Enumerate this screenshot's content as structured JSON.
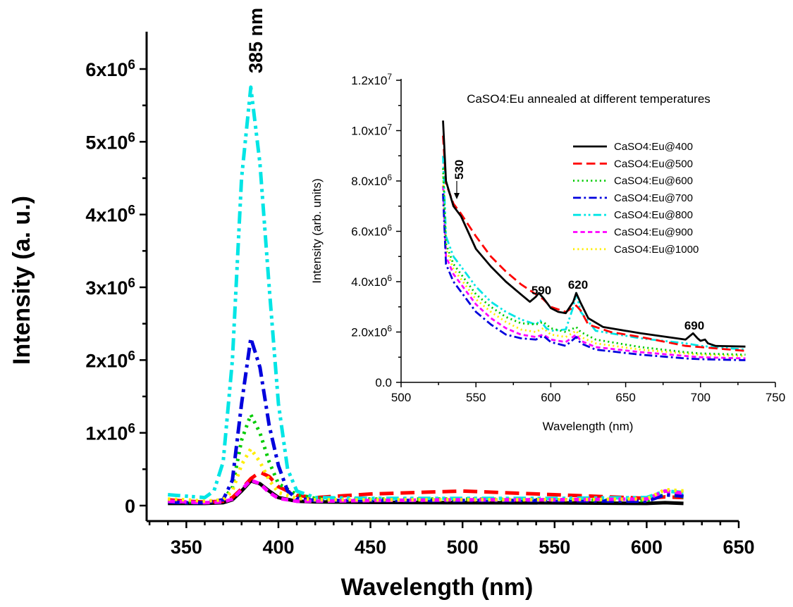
{
  "chart_data": [
    {
      "type": "line",
      "title": "",
      "xlabel": "Wavelength (nm)",
      "ylabel": "Intensity (a. u.)",
      "xlim": [
        320,
        650
      ],
      "ylim": [
        -200000,
        6500000
      ],
      "x_ticks": [
        "350",
        "400",
        "450",
        "500",
        "550",
        "600",
        "650"
      ],
      "y_ticks": [
        {
          "value": 0,
          "mantissa": "0",
          "exp": ""
        },
        {
          "value": 1000000,
          "mantissa": "1x10",
          "exp": "6"
        },
        {
          "value": 2000000,
          "mantissa": "2x10",
          "exp": "6"
        },
        {
          "value": 3000000,
          "mantissa": "3x10",
          "exp": "6"
        },
        {
          "value": 4000000,
          "mantissa": "4x10",
          "exp": "6"
        },
        {
          "value": 5000000,
          "mantissa": "5x10",
          "exp": "6"
        },
        {
          "value": 6000000,
          "mantissa": "6x10",
          "exp": "6"
        }
      ],
      "annotation": "385 nm",
      "grid": false,
      "series": [
        {
          "color": "#000000",
          "dash": "solid",
          "x": [
            340,
            350,
            360,
            370,
            375,
            380,
            385,
            390,
            395,
            400,
            410,
            420,
            450,
            500,
            550,
            600,
            610,
            620
          ],
          "y": [
            30000,
            30000,
            30000,
            40000,
            80000,
            200000,
            340000,
            300000,
            200000,
            110000,
            60000,
            50000,
            45000,
            40000,
            38000,
            30000,
            40000,
            30000
          ]
        },
        {
          "color": "#ff0000",
          "dash": "dash",
          "x": [
            340,
            350,
            360,
            370,
            375,
            380,
            385,
            390,
            395,
            400,
            410,
            420,
            450,
            500,
            550,
            600,
            610,
            620
          ],
          "y": [
            80000,
            60000,
            50000,
            60000,
            110000,
            230000,
            370000,
            460000,
            400000,
            260000,
            140000,
            110000,
            160000,
            200000,
            150000,
            100000,
            120000,
            110000
          ]
        },
        {
          "color": "#00cc00",
          "dash": "dot",
          "x": [
            340,
            350,
            360,
            370,
            375,
            380,
            385,
            390,
            395,
            400,
            410,
            420,
            450,
            500,
            550,
            600,
            610,
            620
          ],
          "y": [
            60000,
            50000,
            50000,
            80000,
            250000,
            900000,
            1250000,
            1000000,
            600000,
            300000,
            150000,
            100000,
            90000,
            90000,
            80000,
            70000,
            150000,
            120000
          ]
        },
        {
          "color": "#0000dd",
          "dash": "dashdot",
          "x": [
            340,
            350,
            360,
            370,
            375,
            380,
            385,
            390,
            395,
            400,
            405,
            410,
            420,
            450,
            500,
            550,
            600,
            610,
            620
          ],
          "y": [
            50000,
            40000,
            40000,
            80000,
            350000,
            1400000,
            2300000,
            1900000,
            1100000,
            550000,
            200000,
            100000,
            70000,
            70000,
            70000,
            70000,
            60000,
            150000,
            130000
          ]
        },
        {
          "color": "#00e5e5",
          "dash": "dashdotdot",
          "x": [
            340,
            350,
            360,
            365,
            370,
            375,
            380,
            385,
            390,
            395,
            400,
            405,
            410,
            420,
            450,
            500,
            550,
            600,
            610,
            620
          ],
          "y": [
            150000,
            130000,
            110000,
            200000,
            600000,
            2000000,
            4500000,
            5750000,
            4700000,
            3000000,
            1400000,
            500000,
            200000,
            110000,
            100000,
            100000,
            100000,
            110000,
            200000,
            180000
          ]
        },
        {
          "color": "#ff00ff",
          "dash": "shortdash",
          "x": [
            340,
            350,
            360,
            370,
            375,
            380,
            385,
            390,
            395,
            400,
            410,
            420,
            450,
            500,
            550,
            600,
            610,
            620
          ],
          "y": [
            60000,
            50000,
            40000,
            50000,
            90000,
            220000,
            350000,
            300000,
            180000,
            100000,
            60000,
            60000,
            70000,
            80000,
            80000,
            90000,
            200000,
            170000
          ]
        },
        {
          "color": "#ffee00",
          "dash": "dot",
          "x": [
            340,
            350,
            360,
            370,
            375,
            380,
            385,
            390,
            395,
            400,
            410,
            420,
            450,
            500,
            550,
            600,
            610,
            620
          ],
          "y": [
            90000,
            80000,
            60000,
            80000,
            200000,
            560000,
            780000,
            600000,
            350000,
            180000,
            100000,
            80000,
            80000,
            80000,
            80000,
            90000,
            220000,
            200000
          ]
        }
      ]
    },
    {
      "type": "line",
      "title": "CaSO4:Eu annealed at different temperatures",
      "xlabel": "Wavelength (nm)",
      "ylabel": "Intensity (arb. units)",
      "xlim": [
        500,
        750
      ],
      "ylim": [
        0,
        12000000
      ],
      "x_ticks": [
        "500",
        "550",
        "600",
        "650",
        "700",
        "750"
      ],
      "y_ticks": [
        {
          "value": 0,
          "mantissa": "0.0",
          "exp": ""
        },
        {
          "value": 2000000,
          "mantissa": "2.0x10",
          "exp": "6"
        },
        {
          "value": 4000000,
          "mantissa": "4.0x10",
          "exp": "6"
        },
        {
          "value": 6000000,
          "mantissa": "6.0x10",
          "exp": "6"
        },
        {
          "value": 8000000,
          "mantissa": "8.0x10",
          "exp": "6"
        },
        {
          "value": 10000000,
          "mantissa": "1.0x10",
          "exp": "7"
        },
        {
          "value": 12000000,
          "mantissa": "1.2x10",
          "exp": "7"
        }
      ],
      "annotations": [
        "530",
        "590",
        "620",
        "690"
      ],
      "legend_position": "top-right",
      "grid": false,
      "series": [
        {
          "name": "CaSO4:Eu@400",
          "color": "#000000",
          "dash": "solid",
          "x": [
            528,
            530,
            535,
            540,
            550,
            560,
            570,
            580,
            586,
            590,
            592,
            595,
            600,
            605,
            610,
            615,
            617,
            620,
            625,
            635,
            660,
            690,
            693,
            695,
            698,
            700,
            703,
            705,
            710,
            730
          ],
          "y": [
            10400000,
            8000000,
            7000000,
            6600000,
            5300000,
            4600000,
            4000000,
            3500000,
            3200000,
            3400000,
            3550000,
            3350000,
            2950000,
            2800000,
            2750000,
            3200000,
            3550000,
            3150000,
            2550000,
            2200000,
            1950000,
            1700000,
            1850000,
            1950000,
            1750000,
            1650000,
            1700000,
            1550000,
            1450000,
            1420000
          ]
        },
        {
          "name": "CaSO4:Eu@500",
          "color": "#ff0000",
          "dash": "dash",
          "x": [
            528,
            530,
            535,
            540,
            550,
            560,
            570,
            580,
            590,
            595,
            600,
            610,
            617,
            620,
            625,
            640,
            660,
            690,
            700,
            730
          ],
          "y": [
            9800000,
            7900000,
            7100000,
            6700000,
            5800000,
            5000000,
            4400000,
            3900000,
            3500000,
            3300000,
            3000000,
            2800000,
            3050000,
            2850000,
            2300000,
            2000000,
            1800000,
            1450000,
            1400000,
            1250000
          ]
        },
        {
          "name": "CaSO4:Eu@600",
          "color": "#00cc00",
          "dash": "dot",
          "x": [
            528,
            530,
            535,
            540,
            550,
            560,
            570,
            580,
            590,
            595,
            600,
            610,
            617,
            620,
            630,
            660,
            690,
            700,
            730
          ],
          "y": [
            8500000,
            5500000,
            4700000,
            4300000,
            3500000,
            3000000,
            2600000,
            2350000,
            2300000,
            2400000,
            2150000,
            2000000,
            2200000,
            2000000,
            1700000,
            1400000,
            1200000,
            1150000,
            1100000
          ]
        },
        {
          "name": "CaSO4:Eu@700",
          "color": "#0000dd",
          "dash": "dashdot",
          "x": [
            528,
            530,
            535,
            540,
            550,
            560,
            570,
            580,
            590,
            595,
            600,
            610,
            617,
            620,
            630,
            660,
            690,
            700,
            730
          ],
          "y": [
            7500000,
            4700000,
            4000000,
            3600000,
            2800000,
            2300000,
            1900000,
            1750000,
            1700000,
            1850000,
            1600000,
            1450000,
            1800000,
            1550000,
            1300000,
            1100000,
            950000,
            920000,
            880000
          ]
        },
        {
          "name": "CaSO4:Eu@800",
          "color": "#00e5e5",
          "dash": "dashdotdot",
          "x": [
            528,
            530,
            535,
            540,
            550,
            560,
            570,
            580,
            590,
            593,
            597,
            600,
            610,
            615,
            617,
            620,
            630,
            660,
            690,
            700,
            730
          ],
          "y": [
            9000000,
            5800000,
            5000000,
            4600000,
            3800000,
            3200000,
            2800000,
            2500000,
            2300000,
            2450000,
            2150000,
            2050000,
            2100000,
            3000000,
            3550000,
            2800000,
            2050000,
            1750000,
            1550000,
            1450000,
            1300000
          ]
        },
        {
          "name": "CaSO4:Eu@900",
          "color": "#ff00ff",
          "dash": "shortdash",
          "x": [
            528,
            530,
            535,
            540,
            550,
            560,
            570,
            580,
            590,
            595,
            600,
            610,
            617,
            620,
            630,
            660,
            690,
            700,
            730
          ],
          "y": [
            7800000,
            5000000,
            4300000,
            3900000,
            3100000,
            2550000,
            2150000,
            1900000,
            1800000,
            1900000,
            1700000,
            1600000,
            1900000,
            1650000,
            1400000,
            1200000,
            1050000,
            1000000,
            950000
          ]
        },
        {
          "name": "CaSO4:Eu@1000",
          "color": "#ffee00",
          "dash": "dot",
          "x": [
            528,
            530,
            535,
            540,
            550,
            560,
            570,
            580,
            590,
            595,
            600,
            610,
            617,
            620,
            630,
            660,
            690,
            700,
            730
          ],
          "y": [
            8200000,
            5300000,
            4500000,
            4100000,
            3300000,
            2800000,
            2400000,
            2100000,
            2000000,
            2150000,
            1900000,
            1800000,
            2050000,
            1800000,
            1550000,
            1300000,
            1150000,
            1100000,
            1050000
          ]
        }
      ]
    }
  ]
}
